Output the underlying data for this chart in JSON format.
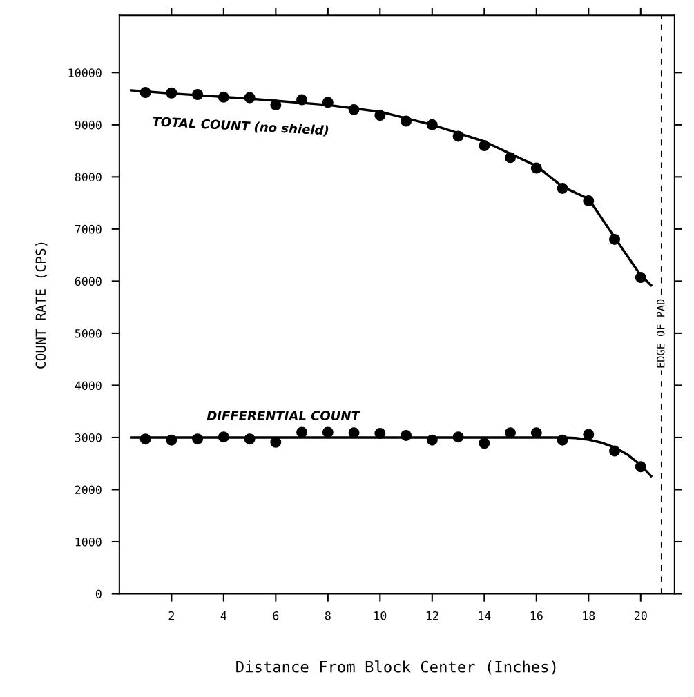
{
  "chart_data": {
    "type": "scatter",
    "xlabel": "Distance From Block Center (Inches)",
    "ylabel": "COUNT RATE (CPS)",
    "xlim": [
      0,
      21.3
    ],
    "ylim": [
      0,
      11100
    ],
    "xticks": [
      2,
      4,
      6,
      8,
      10,
      12,
      14,
      16,
      18,
      20
    ],
    "yticks": [
      0,
      1000,
      2000,
      3000,
      4000,
      5000,
      6000,
      7000,
      8000,
      9000,
      10000
    ],
    "grid": false,
    "legend": false,
    "series": [
      {
        "marker": "circle",
        "color": "#000000",
        "x": [
          1,
          2,
          3,
          4,
          5,
          6,
          7,
          8,
          9,
          10,
          11,
          12,
          13,
          14,
          15,
          16,
          17,
          18,
          19,
          20
        ],
        "values": [
          9620,
          9610,
          9580,
          9530,
          9520,
          9380,
          9480,
          9430,
          9290,
          9180,
          9070,
          9000,
          8780,
          8600,
          8370,
          8170,
          7780,
          7540,
          6800,
          6070
        ]
      },
      {
        "type": "line",
        "marker": "none",
        "line_style": "solid",
        "name": "TOTAL COUNT (no shield)",
        "color": "#000000",
        "x": [
          0.45,
          2,
          5,
          8,
          10,
          12,
          14,
          16,
          17,
          18,
          19,
          20,
          20.4
        ],
        "values": [
          9660,
          9600,
          9500,
          9380,
          9250,
          9000,
          8680,
          8210,
          7810,
          7580,
          6840,
          6110,
          5920
        ]
      },
      {
        "marker": "circle",
        "color": "#000000",
        "x": [
          1,
          2,
          3,
          4,
          5,
          6,
          7,
          8,
          9,
          10,
          11,
          12,
          13,
          14,
          15,
          16,
          17,
          18,
          19,
          20
        ],
        "values": [
          2970,
          2950,
          2970,
          3010,
          2970,
          2910,
          3100,
          3100,
          3090,
          3080,
          3040,
          2950,
          3010,
          2890,
          3090,
          3090,
          2950,
          3060,
          2740,
          2440
        ]
      },
      {
        "type": "line",
        "marker": "none",
        "line_style": "solid",
        "name": "DIFFERENTIAL COUNT",
        "color": "#000000",
        "x": [
          0.45,
          5,
          10,
          15,
          17,
          17.5,
          18,
          18.5,
          19,
          19.5,
          20,
          20.4
        ],
        "values": [
          3000,
          3000,
          3000,
          3000,
          3000,
          2990,
          2960,
          2900,
          2810,
          2670,
          2470,
          2260
        ]
      }
    ],
    "ref_lines": [
      {
        "axis": "x",
        "value": 20.8,
        "label": "EDGE OF PAD",
        "color": "#000000",
        "line_style": "dashed"
      }
    ]
  }
}
